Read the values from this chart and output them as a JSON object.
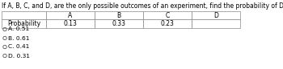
{
  "title": "If A, B, C, and D, are the only possible outcomes of an experiment, find the probability of D using the table below.",
  "table_headers": [
    "",
    "A",
    "B",
    "C",
    "D"
  ],
  "table_row_label": "Probability",
  "table_values": [
    "0.13",
    "0.33",
    "0.23",
    ""
  ],
  "choices": [
    "A. 0.51",
    "B. 0.61",
    "C. 0.41",
    "D. 0.31"
  ],
  "bg_color": "#ffffff",
  "text_color": "#000000",
  "title_fontsize": 5.5,
  "table_fontsize": 5.5,
  "choice_fontsize": 5.4,
  "fig_width": 3.5,
  "fig_height": 0.86,
  "dpi": 100
}
